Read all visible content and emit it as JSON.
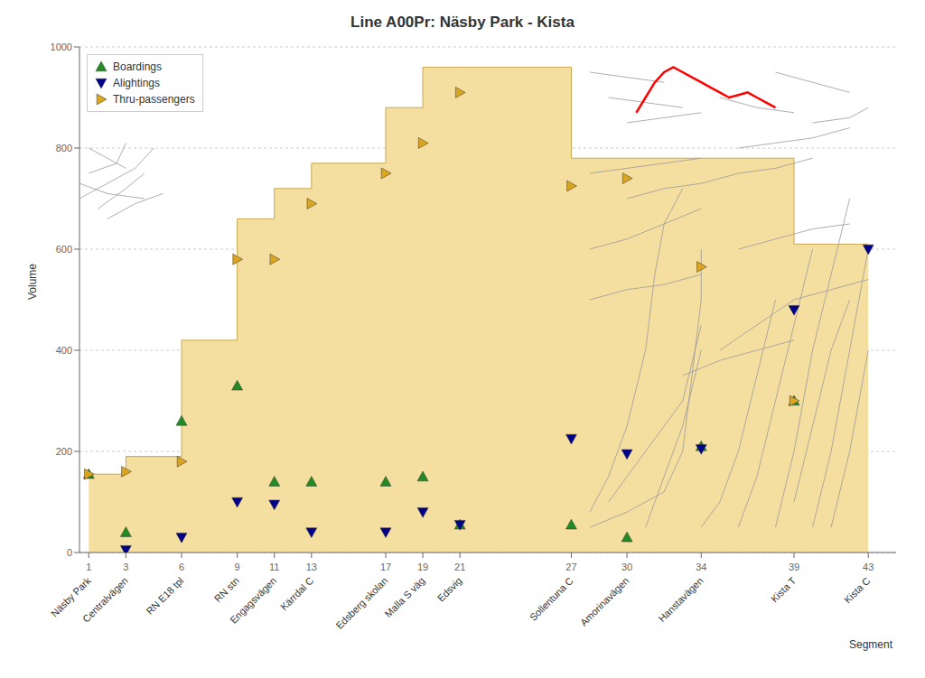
{
  "chart_data": {
    "type": "bar",
    "title": "Line A00Pr: Näsby Park - Kista",
    "xlabel": "Segment",
    "ylabel": "Volume",
    "xlim": [
      0.5,
      44.5
    ],
    "ylim": [
      0,
      1000
    ],
    "xticks": [
      1,
      3,
      6,
      9,
      11,
      13,
      17,
      19,
      21,
      27,
      30,
      34,
      39,
      43
    ],
    "yticks": [
      0,
      200,
      400,
      600,
      800,
      1000
    ],
    "grid": true,
    "legend": "upper left",
    "color": "#F5DFA0",
    "bins": [
      1,
      3,
      6,
      9,
      11,
      13,
      17,
      19,
      21,
      27,
      30,
      34,
      39,
      43
    ],
    "values": [
      155,
      190,
      420,
      660,
      720,
      770,
      880,
      960,
      960,
      780,
      780,
      780,
      610
    ],
    "annotations": [
      {
        "x": 1,
        "text": "Näsby Park"
      },
      {
        "x": 3,
        "text": "Centralvägen"
      },
      {
        "x": 6,
        "text": "RN E18 tpl"
      },
      {
        "x": 9,
        "text": "RN stn"
      },
      {
        "x": 11,
        "text": "Engagsvägen"
      },
      {
        "x": 13,
        "text": "Kärrdal C"
      },
      {
        "x": 17,
        "text": "Edsberg skolan"
      },
      {
        "x": 19,
        "text": "Malla S väg"
      },
      {
        "x": 21,
        "text": "Edsvig"
      },
      {
        "x": 27,
        "text": "Sollentuna C"
      },
      {
        "x": 30,
        "text": "Amorinavägen"
      },
      {
        "x": 34,
        "text": "Hanstavägen"
      },
      {
        "x": 39,
        "text": "Kista T"
      },
      {
        "x": 43,
        "text": "Kista C"
      }
    ],
    "series": [
      {
        "type": "line",
        "color": "#999999",
        "x": [
          1.5,
          3,
          4
        ],
        "values": [
          680,
          720,
          750
        ]
      },
      {
        "type": "line",
        "color": "#999999",
        "x": [
          0.5,
          2,
          3.5,
          4.5
        ],
        "values": [
          700,
          730,
          760,
          800
        ]
      },
      {
        "type": "line",
        "color": "#999999",
        "x": [
          1,
          2.5,
          3
        ],
        "values": [
          750,
          770,
          810
        ]
      },
      {
        "type": "line",
        "color": "#999999",
        "x": [
          2,
          3.5,
          5
        ],
        "values": [
          660,
          690,
          710
        ]
      },
      {
        "type": "line",
        "color": "#999999",
        "x": [
          1,
          2,
          3
        ],
        "values": [
          800,
          780,
          760
        ]
      },
      {
        "type": "line",
        "color": "#999999",
        "x": [
          0.5,
          2,
          4
        ],
        "values": [
          730,
          710,
          700
        ]
      },
      {
        "type": "line",
        "color": "#999999",
        "x": [
          28,
          30,
          32,
          33,
          33.5,
          34,
          34
        ],
        "values": [
          50,
          80,
          120,
          200,
          350,
          500,
          600
        ]
      },
      {
        "type": "line",
        "color": "#999999",
        "x": [
          28,
          29,
          30,
          31,
          31.5,
          32,
          33
        ],
        "values": [
          80,
          150,
          250,
          400,
          550,
          650,
          720
        ]
      },
      {
        "type": "line",
        "color": "#999999",
        "x": [
          34,
          35,
          36,
          37,
          38
        ],
        "values": [
          50,
          100,
          200,
          350,
          500
        ]
      },
      {
        "type": "line",
        "color": "#999999",
        "x": [
          36,
          37,
          38,
          39,
          40
        ],
        "values": [
          50,
          150,
          300,
          450,
          600
        ]
      },
      {
        "type": "line",
        "color": "#999999",
        "x": [
          38,
          39,
          40,
          41,
          42
        ],
        "values": [
          50,
          200,
          400,
          550,
          700
        ]
      },
      {
        "type": "line",
        "color": "#999999",
        "x": [
          40,
          41,
          42,
          43
        ],
        "values": [
          50,
          200,
          400,
          600
        ]
      },
      {
        "type": "line",
        "color": "#999999",
        "x": [
          30,
          32,
          34,
          36,
          38,
          40
        ],
        "values": [
          700,
          720,
          730,
          750,
          760,
          780
        ]
      },
      {
        "type": "line",
        "color": "#999999",
        "x": [
          28,
          30,
          32,
          34
        ],
        "values": [
          600,
          620,
          650,
          680
        ]
      },
      {
        "type": "line",
        "color": "#999999",
        "x": [
          35,
          37,
          39,
          41,
          43
        ],
        "values": [
          400,
          450,
          500,
          520,
          540
        ]
      },
      {
        "type": "line",
        "color": "#999999",
        "x": [
          33,
          35,
          37,
          39
        ],
        "values": [
          350,
          380,
          400,
          420
        ]
      },
      {
        "type": "line",
        "color": "#999999",
        "x": [
          28,
          30,
          32,
          34
        ],
        "values": [
          500,
          520,
          530,
          550
        ]
      },
      {
        "type": "line",
        "color": "#999999",
        "x": [
          36,
          38,
          40,
          42
        ],
        "values": [
          600,
          620,
          640,
          650
        ]
      },
      {
        "type": "line",
        "color": "#999999",
        "x": [
          28,
          30,
          32,
          34
        ],
        "values": [
          750,
          760,
          770,
          780
        ]
      },
      {
        "type": "line",
        "color": "#999999",
        "x": [
          36,
          38,
          40,
          42
        ],
        "values": [
          800,
          810,
          820,
          840
        ]
      },
      {
        "type": "line",
        "color": "#999999",
        "x": [
          30,
          32,
          34
        ],
        "values": [
          850,
          860,
          870
        ]
      },
      {
        "type": "line",
        "color": "#999999",
        "x": [
          29,
          31,
          33
        ],
        "values": [
          900,
          890,
          880
        ]
      },
      {
        "type": "line",
        "color": "#999999",
        "x": [
          35,
          37,
          39
        ],
        "values": [
          900,
          880,
          870
        ]
      },
      {
        "type": "line",
        "color": "#999999",
        "x": [
          40,
          42,
          43
        ],
        "values": [
          850,
          860,
          880
        ]
      },
      {
        "type": "line",
        "color": "#999999",
        "x": [
          28,
          30,
          32
        ],
        "values": [
          950,
          940,
          930
        ]
      },
      {
        "type": "line",
        "color": "#999999",
        "x": [
          38,
          40,
          42
        ],
        "values": [
          950,
          930,
          910
        ]
      },
      {
        "type": "line",
        "color": "#999999",
        "x": [
          29,
          31,
          33,
          34
        ],
        "values": [
          100,
          200,
          300,
          450
        ]
      },
      {
        "type": "line",
        "color": "#999999",
        "x": [
          31,
          32,
          33,
          34
        ],
        "values": [
          50,
          150,
          250,
          400
        ]
      },
      {
        "type": "line",
        "color": "#999999",
        "x": [
          39,
          40,
          41,
          42
        ],
        "values": [
          100,
          250,
          400,
          500
        ]
      },
      {
        "type": "line",
        "color": "#999999",
        "x": [
          41,
          42,
          43
        ],
        "values": [
          50,
          200,
          400
        ]
      },
      {
        "type": "line",
        "color": "red",
        "x": [
          30.5,
          31,
          31.5,
          32,
          32.5,
          33,
          33.5,
          34,
          34.5,
          35,
          35.5,
          36,
          36.5,
          37,
          37.5,
          38
        ],
        "values": [
          870,
          900,
          930,
          950,
          960,
          950,
          940,
          930,
          920,
          910,
          900,
          905,
          910,
          900,
          890,
          880
        ]
      },
      {
        "type": "scatter",
        "name": "Boardings",
        "marker": "triangle-up",
        "color": "#228B22",
        "x": [
          1,
          3,
          6,
          9,
          11,
          13,
          17,
          19,
          21,
          27,
          30,
          34,
          39
        ],
        "values": [
          155,
          40,
          260,
          330,
          140,
          140,
          140,
          150,
          55,
          55,
          30,
          210,
          300
        ]
      },
      {
        "type": "scatter",
        "name": "Alightings",
        "marker": "triangle-down",
        "color": "#00008B",
        "x": [
          3,
          6,
          9,
          11,
          13,
          17,
          19,
          21,
          27,
          30,
          34,
          39,
          43
        ],
        "values": [
          5,
          30,
          100,
          95,
          40,
          40,
          80,
          55,
          225,
          195,
          205,
          480,
          600
        ]
      },
      {
        "type": "scatter",
        "name": "Thru-passengers",
        "marker": "triangle-right",
        "color": "#DAA520",
        "x": [
          1,
          3,
          6,
          9,
          11,
          13,
          17,
          19,
          21,
          27,
          30,
          34,
          39
        ],
        "values": [
          155,
          160,
          180,
          580,
          580,
          690,
          750,
          810,
          910,
          725,
          740,
          565,
          300
        ]
      }
    ]
  }
}
